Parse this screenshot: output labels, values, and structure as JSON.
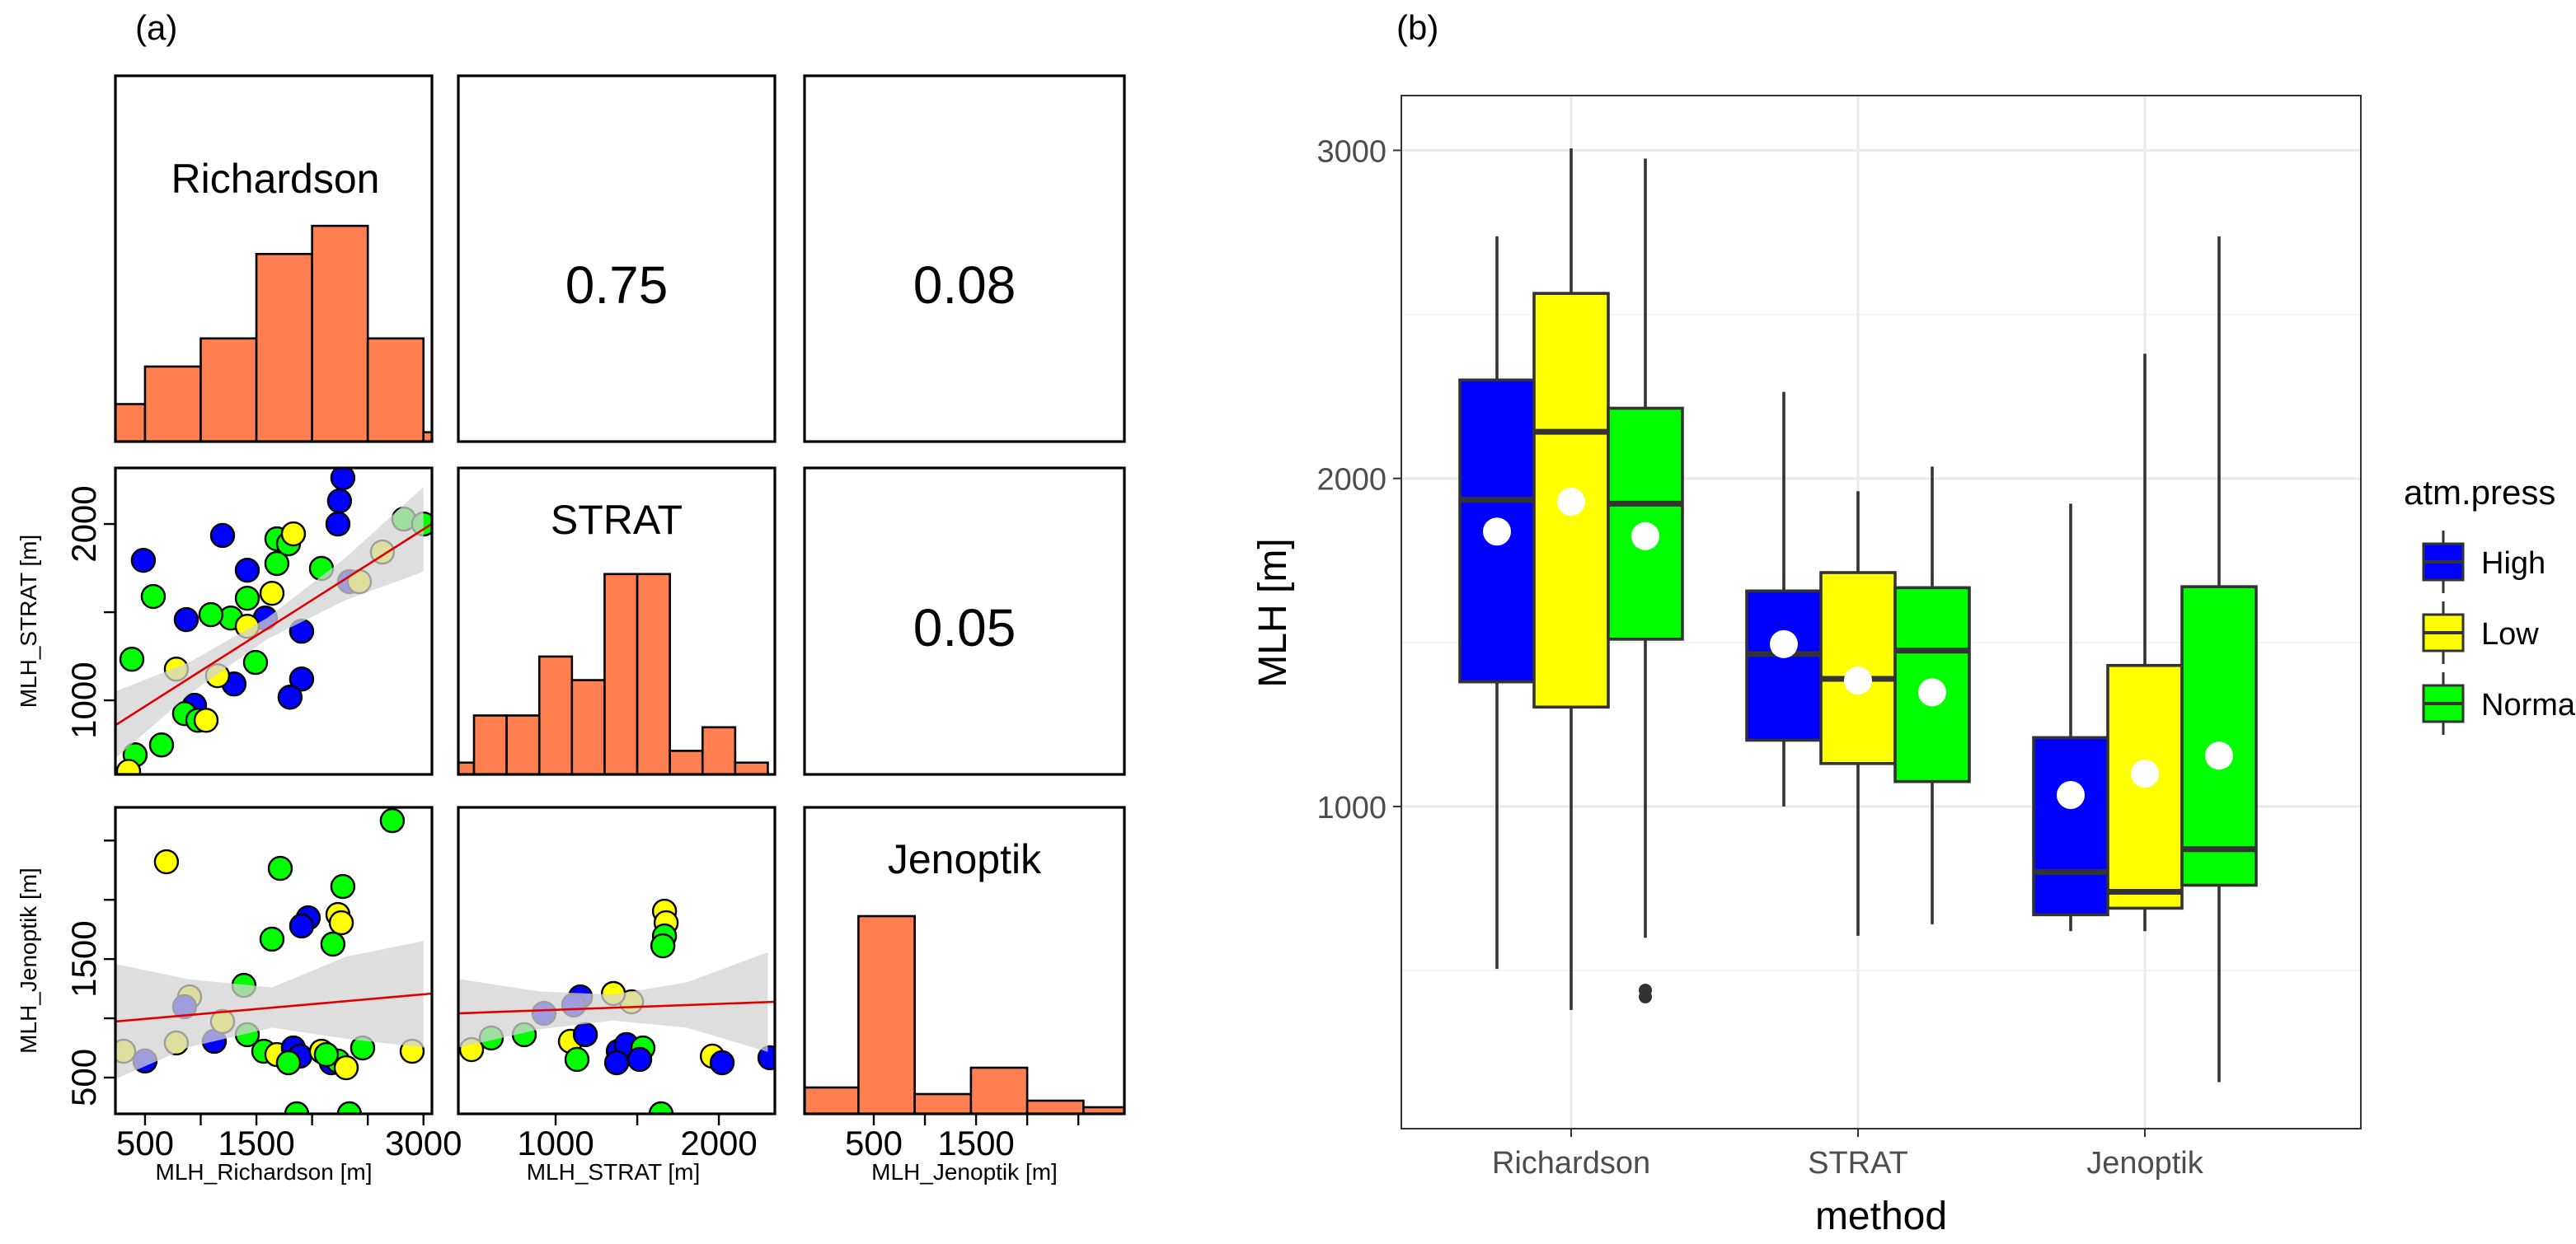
{
  "panel_labels": {
    "a": "(a)",
    "b": "(b)"
  },
  "group_colors": {
    "High": "#0000ff",
    "Low": "#ffff00",
    "Normal": "#00ff00"
  },
  "hist_color": "#ff7f50",
  "chart_data": [
    {
      "type": "scatter",
      "title": "Scatterplot matrix",
      "variables": [
        "Richardson",
        "STRAT",
        "Jenoptik"
      ],
      "diagonal_titles": {
        "Richardson": "Richardson",
        "STRAT": "STRAT",
        "Jenoptik": "Jenoptik"
      },
      "correlations": {
        "Richardson_STRAT": "0.75",
        "Richardson_Jenoptik": "0.08",
        "STRAT_Jenoptik": "0.05"
      },
      "xlabels": {
        "Richardson": "MLH_Richardson [m]",
        "STRAT": "MLH_STRAT [m]",
        "Jenoptik": "MLH_Jenoptik [m]"
      },
      "ylabels": {
        "STRAT": "MLH_STRAT [m]",
        "Jenoptik": "MLH_Jenoptik [m]"
      },
      "x_tick_labels": {
        "Richardson": [
          "500",
          "1500",
          "3000"
        ],
        "STRAT": [
          "1000",
          "2000"
        ],
        "Jenoptik": [
          "500",
          "1500"
        ]
      },
      "x_tick_values": {
        "Richardson": [
          500,
          1000,
          1500,
          2000,
          2500,
          3000
        ],
        "STRAT": [
          1000,
          1500,
          2000
        ],
        "Jenoptik": [
          500,
          1000,
          1500,
          2000,
          2500
        ]
      },
      "x_tick_label_values": {
        "Richardson": [
          500,
          1500,
          3000
        ],
        "STRAT": [
          1000,
          2000
        ],
        "Jenoptik": [
          500,
          1500
        ]
      },
      "y_tick_labels": {
        "STRAT": [
          "1000",
          "2000"
        ],
        "Jenoptik": [
          "500",
          "1500"
        ]
      },
      "y_tick_values": {
        "STRAT": [
          1000,
          1500,
          2000
        ],
        "Jenoptik": [
          500,
          1000,
          1500,
          2000,
          2500
        ]
      },
      "y_tick_label_values": {
        "STRAT": [
          1000,
          2000
        ],
        "Jenoptik": [
          500,
          1500
        ]
      },
      "histograms": {
        "Richardson": {
          "xlim": [
            234,
            3076
          ],
          "ymax": 39,
          "edges": [
            0,
            500,
            1000,
            1500,
            2000,
            2500,
            3000,
            3500
          ],
          "counts": [
            4,
            8,
            11,
            20,
            23,
            11,
            1
          ]
        },
        "STRAT": {
          "xlim": [
            404,
            2343
          ],
          "ymax": 26,
          "edges": [
            300,
            500,
            700,
            900,
            1100,
            1300,
            1500,
            1700,
            1900,
            2100,
            2300,
            2500
          ],
          "counts": [
            1,
            5,
            5,
            10,
            8,
            17,
            17,
            2,
            4,
            1,
            0
          ]
        },
        "Jenoptik": {
          "xlim": [
            -177,
            2950
          ],
          "ymax": 46.5,
          "edges": [
            -200,
            350,
            900,
            1450,
            2000,
            2550,
            3100
          ],
          "counts": [
            4,
            30,
            3,
            7,
            2,
            1
          ]
        }
      },
      "scatter_panels": [
        {
          "id": "Richardson_vs_STRAT",
          "x": "Richardson",
          "y": "STRAT",
          "xlim": [
            234,
            3076
          ],
          "ylim": [
            580,
            2318
          ],
          "fit_line": [
            [
              234,
              859
            ],
            [
              3076,
              2001
            ]
          ],
          "ci_band": [
            [
              234,
              670,
              1050
            ],
            [
              900,
              1037,
              1217
            ],
            [
              1600,
              1348,
              1468
            ],
            [
              2300,
              1569,
              1809
            ],
            [
              3000,
              1730,
              2210
            ]
          ],
          "points": [
            [
              485,
              1794,
              "High"
            ],
            [
              2276,
              2262,
              "High"
            ],
            [
              2246,
              2131,
              "High"
            ],
            [
              2232,
              2000,
              "High"
            ],
            [
              1196,
              1935,
              "High"
            ],
            [
              870,
              1458,
              "High"
            ],
            [
              1906,
              1392,
              "High"
            ],
            [
              1580,
              1467,
              "High"
            ],
            [
              1299,
              1093,
              "High"
            ],
            [
              1906,
              1121,
              "High"
            ],
            [
              1802,
              1018,
              "High"
            ],
            [
              944,
              972,
              "High"
            ],
            [
              2335,
              1673,
              "High"
            ],
            [
              1418,
              1738,
              "High"
            ],
            [
              1684,
              1916,
              "Normal"
            ],
            [
              1684,
              1776,
              "Normal"
            ],
            [
              1418,
              1579,
              "Normal"
            ],
            [
              1270,
              1467,
              "Normal"
            ],
            [
              1092,
              1486,
              "Normal"
            ],
            [
              382,
              1233,
              "Normal"
            ],
            [
              574,
              1589,
              "Normal"
            ],
            [
              648,
              747,
              "Normal"
            ],
            [
              855,
              925,
              "Normal"
            ],
            [
              411,
              691,
              "Normal"
            ],
            [
              2824,
              2028,
              "Normal"
            ],
            [
              1492,
              1215,
              "Normal"
            ],
            [
              1788,
              1888,
              "Normal"
            ],
            [
              3001,
              2000,
              "Normal"
            ],
            [
              2084,
              1748,
              "Normal"
            ],
            [
              974,
              887,
              "Normal"
            ],
            [
              1832,
              1944,
              "Low"
            ],
            [
              352,
              597,
              "Low"
            ],
            [
              781,
              1177,
              "Low"
            ],
            [
              1151,
              1140,
              "Low"
            ],
            [
              1048,
              887,
              "Low"
            ],
            [
              1418,
              1420,
              "Low"
            ],
            [
              1640,
              1607,
              "Low"
            ],
            [
              2631,
              1841,
              "Low"
            ],
            [
              2424,
              1673,
              "Low"
            ]
          ]
        },
        {
          "id": "Richardson_vs_Jenoptik",
          "x": "Richardson",
          "y": "Jenoptik",
          "xlim": [
            234,
            3076
          ],
          "ylim": [
            194,
            2780
          ],
          "fit_line": [
            [
              234,
              973
            ],
            [
              3076,
              1209
            ]
          ],
          "ci_band": [
            [
              234,
              488,
              1458
            ],
            [
              900,
              758,
              1328
            ],
            [
              1640,
              921,
              1261
            ],
            [
              2300,
              828,
              1518
            ],
            [
              3000,
              753,
              1653
            ]
          ],
          "points": [
            [
              2720,
              2668,
              "Normal"
            ],
            [
              692,
              2321,
              "Low"
            ],
            [
              1714,
              2265,
              "Normal"
            ],
            [
              2276,
              2112,
              "Normal"
            ],
            [
              2232,
              1876,
              "Low"
            ],
            [
              2262,
              1806,
              "Low"
            ],
            [
              2187,
              1626,
              "Normal"
            ],
            [
              1965,
              1848,
              "High"
            ],
            [
              1906,
              1779,
              "High"
            ],
            [
              1640,
              1668,
              "Normal"
            ],
            [
              1388,
              1278,
              "Normal"
            ],
            [
              900,
              1181,
              "Low"
            ],
            [
              855,
              1098,
              "High"
            ],
            [
              500,
              640,
              "High"
            ],
            [
              308,
              722,
              "Low"
            ],
            [
              781,
              792,
              "Low"
            ],
            [
              1122,
              806,
              "High"
            ],
            [
              1418,
              862,
              "Normal"
            ],
            [
              1566,
              722,
              "Normal"
            ],
            [
              1684,
              694,
              "Low"
            ],
            [
              1832,
              750,
              "High"
            ],
            [
              1891,
              681,
              "High"
            ],
            [
              1788,
              625,
              "Normal"
            ],
            [
              2084,
              722,
              "Low"
            ],
            [
              2173,
              625,
              "High"
            ],
            [
              2232,
              639,
              "Normal"
            ],
            [
              2306,
              583,
              "Low"
            ],
            [
              2454,
              750,
              "Normal"
            ],
            [
              2898,
              722,
              "Low"
            ],
            [
              1862,
              194,
              "Normal"
            ],
            [
              2335,
              194,
              "Normal"
            ],
            [
              2128,
              694,
              "Normal"
            ],
            [
              1196,
              973,
              "Low"
            ]
          ]
        },
        {
          "id": "STRAT_vs_Jenoptik",
          "x": "STRAT",
          "y": "Jenoptik",
          "xlim": [
            404,
            2343
          ],
          "ylim": [
            194,
            2780
          ],
          "fit_line": [
            [
              404,
              1042
            ],
            [
              2343,
              1139
            ]
          ],
          "ci_band": [
            [
              404,
              752,
              1332
            ],
            [
              900,
              907,
              1227
            ],
            [
              1350,
              980,
              1200
            ],
            [
              1800,
              922,
              1302
            ],
            [
              2300,
              717,
              1557
            ]
          ],
          "points": [
            [
              1667,
              1904,
              "Low"
            ],
            [
              1677,
              1806,
              "Low"
            ],
            [
              1667,
              1695,
              "Normal"
            ],
            [
              1657,
              1612,
              "Normal"
            ],
            [
              1465,
              1139,
              "Low"
            ],
            [
              1354,
              1209,
              "Low"
            ],
            [
              1152,
              1181,
              "High"
            ],
            [
              1111,
              1112,
              "High"
            ],
            [
              929,
              1042,
              "High"
            ],
            [
              808,
              862,
              "Normal"
            ],
            [
              606,
              834,
              "Normal"
            ],
            [
              485,
              736,
              "Low"
            ],
            [
              1091,
              806,
              "Low"
            ],
            [
              1182,
              862,
              "High"
            ],
            [
              1384,
              722,
              "High"
            ],
            [
              1434,
              778,
              "High"
            ],
            [
              1535,
              750,
              "Normal"
            ],
            [
              1515,
              653,
              "High"
            ],
            [
              1374,
              625,
              "High"
            ],
            [
              1646,
              194,
              "Normal"
            ],
            [
              1960,
              681,
              "Low"
            ],
            [
              2020,
              625,
              "High"
            ],
            [
              2313,
              667,
              "High"
            ],
            [
              1131,
              653,
              "Normal"
            ]
          ]
        }
      ]
    },
    {
      "type": "box",
      "title": "",
      "xlabel": "method",
      "ylabel": "MLH [m]",
      "ylim": [
        18,
        3167
      ],
      "y_ticks": [
        1000,
        2000,
        3000
      ],
      "y_tick_labels": [
        "1000",
        "2000",
        "3000"
      ],
      "y_minor": [
        500,
        1500,
        2500
      ],
      "categories": [
        "Richardson",
        "STRAT",
        "Jenoptik"
      ],
      "legend": {
        "title": "atm.press",
        "position": "right",
        "entries": [
          "High",
          "Low",
          "Normal"
        ]
      },
      "series": [
        {
          "name": "High",
          "boxes": [
            {
              "whisker_low": 505,
              "q1": 1380,
              "median": 1935,
              "q3": 2300,
              "whisker_high": 2738,
              "mean": 1838,
              "outliers": []
            },
            {
              "whisker_low": 1000,
              "q1": 1202,
              "median": 1465,
              "q3": 1657,
              "whisker_high": 2264,
              "mean": 1495,
              "outliers": []
            },
            {
              "whisker_low": 620,
              "q1": 670,
              "median": 800,
              "q3": 1210,
              "whisker_high": 1923,
              "mean": 1035,
              "outliers": []
            }
          ]
        },
        {
          "name": "Low",
          "boxes": [
            {
              "whisker_low": 380,
              "q1": 1303,
              "median": 2142,
              "q3": 2564,
              "whisker_high": 3006,
              "mean": 1929,
              "outliers": []
            },
            {
              "whisker_low": 606,
              "q1": 1131,
              "median": 1389,
              "q3": 1713,
              "whisker_high": 1961,
              "mean": 1384,
              "outliers": []
            },
            {
              "whisker_low": 620,
              "q1": 690,
              "median": 740,
              "q3": 1430,
              "whisker_high": 2380,
              "mean": 1100,
              "outliers": []
            }
          ]
        },
        {
          "name": "Normal",
          "boxes": [
            {
              "whisker_low": 600,
              "q1": 1510,
              "median": 1923,
              "q3": 2214,
              "whisker_high": 2975,
              "mean": 1824,
              "outliers": [
                420,
                440
              ]
            },
            {
              "whisker_low": 641,
              "q1": 1076,
              "median": 1475,
              "q3": 1667,
              "whisker_high": 2036,
              "mean": 1348,
              "outliers": []
            },
            {
              "whisker_low": 160,
              "q1": 760,
              "median": 870,
              "q3": 1670,
              "whisker_high": 2738,
              "mean": 1155,
              "outliers": []
            }
          ]
        }
      ]
    }
  ]
}
